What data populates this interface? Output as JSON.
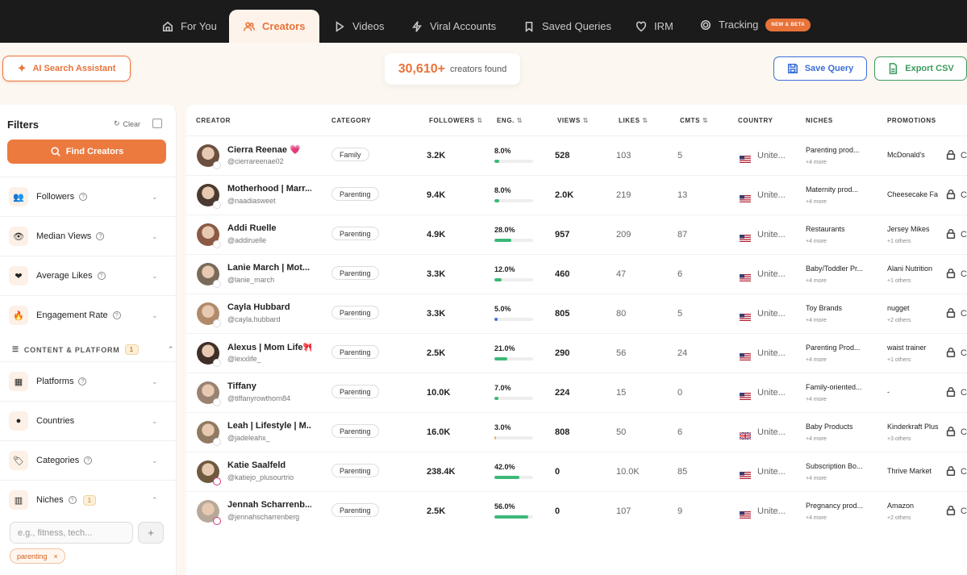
{
  "nav": {
    "tabs": [
      {
        "label": "For You",
        "icon": "home-icon"
      },
      {
        "label": "Creators",
        "icon": "users-icon"
      },
      {
        "label": "Videos",
        "icon": "play-icon"
      },
      {
        "label": "Viral Accounts",
        "icon": "zap-icon"
      },
      {
        "label": "Saved Queries",
        "icon": "bookmark-icon"
      },
      {
        "label": "IRM",
        "icon": "heart-icon"
      },
      {
        "label": "Tracking",
        "icon": "target-icon"
      }
    ],
    "badge": "NEW & BETA"
  },
  "toolbar": {
    "ai_label": "AI Search Assistant",
    "count_number": "30,610+",
    "count_label": "creators found",
    "save_label": "Save Query",
    "export_label": "Export CSV"
  },
  "colors": {
    "accent": "#e8733a",
    "save": "#3b6fd8",
    "export": "#3c9a5c",
    "green_bar": "#3cb878",
    "yellow_bar": "#f0b030",
    "blue_bar": "#3b6fd8"
  },
  "sidebar": {
    "title": "Filters",
    "clear": "Clear",
    "find": "Find Creators",
    "filters": [
      "Followers",
      "Median Views",
      "Average Likes",
      "Engagement Rate"
    ],
    "section": "CONTENT & PLATFORM",
    "section_count": "1",
    "filters2": [
      "Platforms",
      "Countries",
      "Categories",
      "Niches"
    ],
    "niches_count": "1",
    "niche_placeholder": "e.g., fitness, tech...",
    "tag": "parenting"
  },
  "table": {
    "headers": [
      "CREATOR",
      "CATEGORY",
      "FOLLOWERS",
      "ENG.",
      "VIEWS",
      "LIKES",
      "CMTS",
      "COUNTRY",
      "NICHES",
      "PROMOTIONS"
    ],
    "rows": [
      {
        "name": "Cierra Reenae 💗",
        "handle": "@cierrareenae02",
        "category": "Family",
        "followers": "3.2K",
        "eng": "8.0%",
        "eng_level": 8.0,
        "views": "528",
        "likes": "103",
        "cmts": "5",
        "country": "Unite...",
        "flag": "us",
        "niche": "Parenting prod...",
        "niche_more": "+4 more",
        "promo": "McDonald's",
        "promo_more": "",
        "extra": "C",
        "platform": "tiktok"
      },
      {
        "name": "Motherhood | Marr...",
        "handle": "@naadiasweet",
        "category": "Parenting",
        "followers": "9.4K",
        "eng": "8.0%",
        "eng_level": 8.0,
        "views": "2.0K",
        "likes": "219",
        "cmts": "13",
        "country": "Unite...",
        "flag": "us",
        "niche": "Maternity prod...",
        "niche_more": "+4 more",
        "promo": "Cheesecake Fa",
        "promo_more": "",
        "extra": "C",
        "platform": "tiktok"
      },
      {
        "name": "Addi Ruelle",
        "handle": "@addiruelle",
        "category": "Parenting",
        "followers": "4.9K",
        "eng": "28.0%",
        "eng_level": 28.0,
        "views": "957",
        "likes": "209",
        "cmts": "87",
        "country": "Unite...",
        "flag": "us",
        "niche": "Restaurants",
        "niche_more": "+4 more",
        "promo": "Jersey Mikes",
        "promo_more": "+1 others",
        "extra": "C",
        "platform": "tiktok"
      },
      {
        "name": "Lanie March | Mot...",
        "handle": "@lanie_march",
        "category": "Parenting",
        "followers": "3.3K",
        "eng": "12.0%",
        "eng_level": 12.0,
        "views": "460",
        "likes": "47",
        "cmts": "6",
        "country": "Unite...",
        "flag": "us",
        "niche": "Baby/Toddler Pr...",
        "niche_more": "+4 more",
        "promo": "Alani Nutrition",
        "promo_more": "+1 others",
        "extra": "C",
        "platform": "tiktok"
      },
      {
        "name": "Cayla Hubbard",
        "handle": "@cayla.hubbard",
        "category": "Parenting",
        "followers": "3.3K",
        "eng": "5.0%",
        "eng_level": 5.0,
        "views": "805",
        "likes": "80",
        "cmts": "5",
        "country": "Unite...",
        "flag": "us",
        "niche": "Toy Brands",
        "niche_more": "+4 more",
        "promo": "nugget",
        "promo_more": "+2 others",
        "extra": "C",
        "platform": "tiktok"
      },
      {
        "name": "Alexus | Mom Life🎀",
        "handle": "@lexxlife_",
        "category": "Parenting",
        "followers": "2.5K",
        "eng": "21.0%",
        "eng_level": 21.0,
        "views": "290",
        "likes": "56",
        "cmts": "24",
        "country": "Unite...",
        "flag": "us",
        "niche": "Parenting Prod...",
        "niche_more": "+4 more",
        "promo": "waist trainer",
        "promo_more": "+1 others",
        "extra": "C",
        "platform": "tiktok"
      },
      {
        "name": "Tiffany",
        "handle": "@tiffanyrowthorn84",
        "category": "Parenting",
        "followers": "10.0K",
        "eng": "7.0%",
        "eng_level": 7.0,
        "views": "224",
        "likes": "15",
        "cmts": "0",
        "country": "Unite...",
        "flag": "us",
        "niche": "Family-oriented...",
        "niche_more": "+4 more",
        "promo": "-",
        "promo_more": "",
        "extra": "C",
        "platform": "tiktok"
      },
      {
        "name": "Leah | Lifestyle | M...",
        "handle": "@jadeleahx_",
        "category": "Parenting",
        "followers": "16.0K",
        "eng": "3.0%",
        "eng_level": 3.0,
        "views": "808",
        "likes": "50",
        "cmts": "6",
        "country": "Unite...",
        "flag": "uk",
        "niche": "Baby Products",
        "niche_more": "+4 more",
        "promo": "Kinderkraft Plus",
        "promo_more": "+3 others",
        "extra": "C",
        "platform": "tiktok"
      },
      {
        "name": "Katie Saalfeld",
        "handle": "@katiejo_plusourtrio",
        "category": "Parenting",
        "followers": "238.4K",
        "eng": "42.0%",
        "eng_level": 42.0,
        "views": "0",
        "likes": "10.0K",
        "cmts": "85",
        "country": "Unite...",
        "flag": "us",
        "niche": "Subscription Bo...",
        "niche_more": "+4 more",
        "promo": "Thrive Market",
        "promo_more": "",
        "extra": "C",
        "platform": "instagram"
      },
      {
        "name": "Jennah Scharrenb...",
        "handle": "@jennahscharrenberg",
        "category": "Parenting",
        "followers": "2.5K",
        "eng": "56.0%",
        "eng_level": 56.0,
        "views": "0",
        "likes": "107",
        "cmts": "9",
        "country": "Unite...",
        "flag": "us",
        "niche": "Pregnancy prod...",
        "niche_more": "+4 more",
        "promo": "Amazon",
        "promo_more": "+2 others",
        "extra": "C",
        "platform": "instagram"
      }
    ]
  }
}
